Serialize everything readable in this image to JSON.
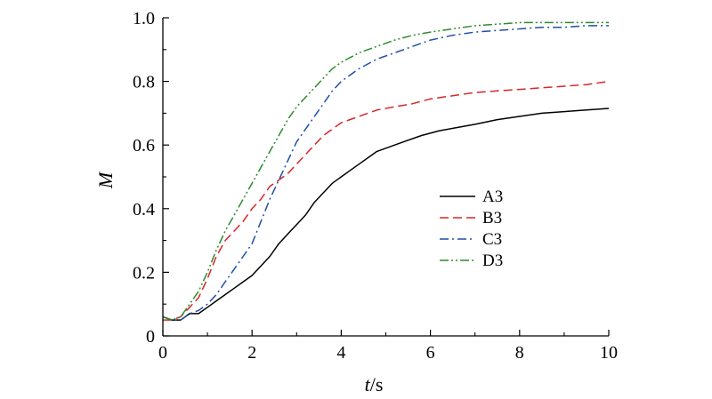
{
  "chart_data": {
    "type": "line",
    "xlabel_italic": "t",
    "xlabel_rest": "/s",
    "ylabel": "M",
    "xlim": [
      0,
      10
    ],
    "ylim": [
      0,
      1.0
    ],
    "xticks": [
      0,
      2,
      4,
      6,
      8,
      10
    ],
    "yticks": [
      0,
      0.2,
      0.4,
      0.6,
      0.8,
      1.0
    ],
    "xtick_labels": [
      "0",
      "2",
      "4",
      "6",
      "8",
      "10"
    ],
    "ytick_labels": [
      "0",
      "0.2",
      "0.4",
      "0.6",
      "0.8",
      "1.0"
    ],
    "grid": false,
    "legend_position": "center-right",
    "series": [
      {
        "name": "A3",
        "color": "#000000",
        "dash": "solid",
        "x": [
          0,
          0.2,
          0.4,
          0.6,
          0.8,
          1.0,
          1.2,
          1.4,
          1.6,
          1.8,
          2.0,
          2.2,
          2.4,
          2.6,
          2.8,
          3.0,
          3.2,
          3.4,
          3.6,
          3.8,
          4.0,
          4.2,
          4.4,
          4.6,
          4.8,
          5.0,
          5.4,
          5.8,
          6.2,
          6.6,
          7.0,
          7.5,
          8.0,
          8.5,
          9.0,
          9.5,
          10.0
        ],
        "y": [
          0.06,
          0.05,
          0.05,
          0.07,
          0.07,
          0.09,
          0.11,
          0.13,
          0.15,
          0.17,
          0.19,
          0.22,
          0.25,
          0.29,
          0.32,
          0.35,
          0.38,
          0.42,
          0.45,
          0.48,
          0.5,
          0.52,
          0.54,
          0.56,
          0.58,
          0.59,
          0.61,
          0.63,
          0.645,
          0.655,
          0.665,
          0.68,
          0.69,
          0.7,
          0.705,
          0.71,
          0.715
        ]
      },
      {
        "name": "B3",
        "color": "#d62728",
        "dash": "dashed",
        "x": [
          0,
          0.2,
          0.4,
          0.6,
          0.8,
          1.0,
          1.2,
          1.4,
          1.6,
          1.8,
          2.0,
          2.2,
          2.4,
          2.6,
          2.8,
          3.0,
          3.2,
          3.4,
          3.6,
          3.8,
          4.0,
          4.4,
          4.8,
          5.2,
          5.6,
          6.0,
          6.5,
          7.0,
          7.5,
          8.0,
          8.5,
          9.0,
          9.5,
          10.0
        ],
        "y": [
          0.05,
          0.05,
          0.06,
          0.09,
          0.12,
          0.18,
          0.25,
          0.3,
          0.33,
          0.36,
          0.4,
          0.43,
          0.47,
          0.49,
          0.51,
          0.54,
          0.57,
          0.6,
          0.63,
          0.65,
          0.67,
          0.69,
          0.71,
          0.72,
          0.73,
          0.745,
          0.755,
          0.765,
          0.77,
          0.775,
          0.78,
          0.785,
          0.79,
          0.8
        ]
      },
      {
        "name": "C3",
        "color": "#1f4fa8",
        "dash": "dashdot",
        "x": [
          0,
          0.2,
          0.4,
          0.6,
          0.8,
          1.0,
          1.2,
          1.4,
          1.6,
          1.8,
          2.0,
          2.2,
          2.4,
          2.6,
          2.8,
          3.0,
          3.2,
          3.4,
          3.6,
          3.8,
          4.0,
          4.4,
          4.8,
          5.2,
          5.6,
          6.0,
          6.5,
          7.0,
          7.5,
          8.0,
          8.5,
          9.0,
          9.5,
          10.0
        ],
        "y": [
          0.06,
          0.05,
          0.05,
          0.07,
          0.08,
          0.1,
          0.13,
          0.17,
          0.21,
          0.25,
          0.29,
          0.36,
          0.43,
          0.49,
          0.55,
          0.61,
          0.65,
          0.69,
          0.73,
          0.77,
          0.8,
          0.84,
          0.87,
          0.89,
          0.91,
          0.93,
          0.945,
          0.955,
          0.96,
          0.965,
          0.97,
          0.97,
          0.975,
          0.975
        ]
      },
      {
        "name": "D3",
        "color": "#2e8b2e",
        "dash": "dashdotdot",
        "x": [
          0,
          0.2,
          0.4,
          0.6,
          0.8,
          1.0,
          1.2,
          1.4,
          1.6,
          1.8,
          2.0,
          2.2,
          2.4,
          2.6,
          2.8,
          3.0,
          3.2,
          3.4,
          3.6,
          3.8,
          4.0,
          4.4,
          4.8,
          5.2,
          5.6,
          6.0,
          6.5,
          7.0,
          7.5,
          8.0,
          8.5,
          9.0,
          9.5,
          10.0
        ],
        "y": [
          0.06,
          0.05,
          0.06,
          0.1,
          0.14,
          0.2,
          0.27,
          0.33,
          0.38,
          0.43,
          0.48,
          0.53,
          0.58,
          0.63,
          0.68,
          0.72,
          0.75,
          0.78,
          0.81,
          0.84,
          0.86,
          0.89,
          0.91,
          0.93,
          0.945,
          0.955,
          0.965,
          0.975,
          0.98,
          0.985,
          0.985,
          0.985,
          0.985,
          0.985
        ]
      }
    ]
  }
}
